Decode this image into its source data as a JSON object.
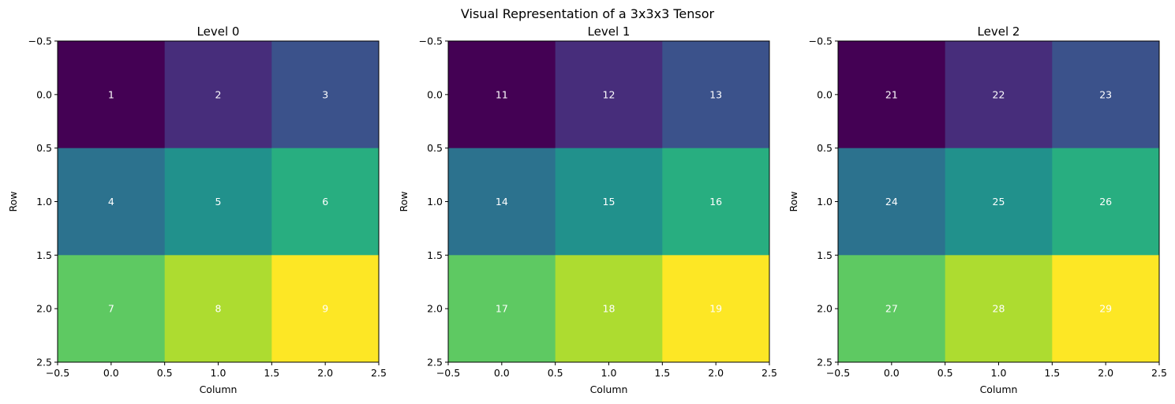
{
  "figure": {
    "title": "Visual Representation of a 3x3x3 Tensor"
  },
  "chart_data": [
    {
      "type": "heatmap",
      "title": "Level 0",
      "xlabel": "Column",
      "ylabel": "Row",
      "xlim": [
        -0.5,
        2.5
      ],
      "ylim": [
        2.5,
        -0.5
      ],
      "xticks": [
        "−0.5",
        "0.0",
        "0.5",
        "1.0",
        "1.5",
        "2.0",
        "2.5"
      ],
      "yticks": [
        "−0.5",
        "0.0",
        "0.5",
        "1.0",
        "1.5",
        "2.0",
        "2.5"
      ],
      "colormap": "viridis",
      "values": [
        [
          1,
          2,
          3
        ],
        [
          4,
          5,
          6
        ],
        [
          7,
          8,
          9
        ]
      ],
      "grid": false
    },
    {
      "type": "heatmap",
      "title": "Level 1",
      "xlabel": "Column",
      "ylabel": "Row",
      "xlim": [
        -0.5,
        2.5
      ],
      "ylim": [
        2.5,
        -0.5
      ],
      "xticks": [
        "−0.5",
        "0.0",
        "0.5",
        "1.0",
        "1.5",
        "2.0",
        "2.5"
      ],
      "yticks": [
        "−0.5",
        "0.0",
        "0.5",
        "1.0",
        "1.5",
        "2.0",
        "2.5"
      ],
      "colormap": "viridis",
      "values": [
        [
          11,
          12,
          13
        ],
        [
          14,
          15,
          16
        ],
        [
          17,
          18,
          19
        ]
      ],
      "grid": false
    },
    {
      "type": "heatmap",
      "title": "Level 2",
      "xlabel": "Column",
      "ylabel": "Row",
      "xlim": [
        -0.5,
        2.5
      ],
      "ylim": [
        2.5,
        -0.5
      ],
      "xticks": [
        "−0.5",
        "0.0",
        "0.5",
        "1.0",
        "1.5",
        "2.0",
        "2.5"
      ],
      "yticks": [
        "−0.5",
        "0.0",
        "0.5",
        "1.0",
        "1.5",
        "2.0",
        "2.5"
      ],
      "colormap": "viridis",
      "values": [
        [
          21,
          22,
          23
        ],
        [
          24,
          25,
          26
        ],
        [
          27,
          28,
          29
        ]
      ],
      "grid": false
    }
  ],
  "colors": {
    "cell_text": "#ffffff",
    "viridis_steps": [
      "#440154",
      "#472d7b",
      "#3b528b",
      "#2c728e",
      "#21918c",
      "#28ae80",
      "#5ec962",
      "#addc30",
      "#fde725"
    ]
  }
}
